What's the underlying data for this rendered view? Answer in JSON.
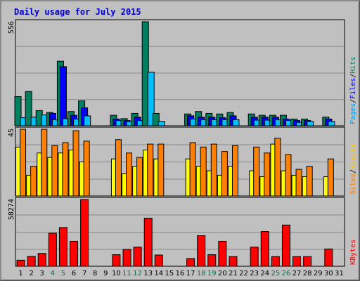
{
  "chart_data": {
    "type": "bar",
    "title": "Daily usage for July 2015",
    "x": [
      "1",
      "2",
      "3",
      "4",
      "5",
      "6",
      "7",
      "8",
      "9",
      "10",
      "11",
      "12",
      "13",
      "14",
      "15",
      "16",
      "17",
      "18",
      "19",
      "20",
      "21",
      "22",
      "23",
      "24",
      "25",
      "26",
      "27",
      "28",
      "29",
      "30",
      "31"
    ],
    "weekend_days": [
      "4",
      "5",
      "11",
      "12",
      "18",
      "19",
      "25",
      "26"
    ],
    "panels": [
      {
        "name": "hits-files-pages",
        "ymax_label": "556",
        "ymax": 556,
        "legend": [
          "Pages",
          "/",
          "Files",
          "/",
          "Hits"
        ],
        "series": [
          {
            "name": "Hits",
            "color": "#008060",
            "values": [
              156,
              183,
              81,
              71,
              345,
              76,
              133,
              0,
              0,
              56,
              38,
              66,
              556,
              66,
              0,
              0,
              63,
              76,
              66,
              63,
              71,
              0,
              63,
              56,
              56,
              56,
              36,
              36,
              0,
              46,
              0
            ]
          },
          {
            "name": "Files",
            "color": "#0000ff",
            "values": [
              0,
              0,
              0,
              66,
              316,
              56,
              96,
              0,
              0,
              36,
              28,
              46,
              0,
              0,
              0,
              0,
              53,
              46,
              46,
              43,
              53,
              0,
              46,
              46,
              46,
              36,
              28,
              28,
              0,
              36,
              0
            ]
          },
          {
            "name": "Pages",
            "color": "#00c0ff",
            "values": [
              43,
              46,
              58,
              33,
              38,
              36,
              53,
              0,
              0,
              28,
              23,
              28,
              286,
              23,
              0,
              0,
              36,
              33,
              33,
              33,
              33,
              0,
              30,
              30,
              33,
              28,
              18,
              23,
              0,
              23,
              0
            ]
          }
        ]
      },
      {
        "name": "visits-sites",
        "ymax_label": "45",
        "ymax": 45,
        "legend": [
          "Sites",
          "/",
          "Visits"
        ],
        "series": [
          {
            "name": "Visits",
            "color": "#ffff00",
            "values": [
              33,
              14,
              29,
              26,
              29,
              31,
              23,
              0,
              0,
              25,
              15,
              20,
              31,
              25,
              0,
              0,
              25,
              20,
              17,
              14,
              20,
              0,
              17,
              13,
              35,
              17,
              14,
              13,
              0,
              13,
              0
            ]
          },
          {
            "name": "Sites",
            "color": "#ff8000",
            "values": [
              45,
              20,
              45,
              34,
              36,
              44,
              37,
              0,
              0,
              38,
              29,
              26,
              35,
              35,
              0,
              0,
              36,
              33,
              35,
              30,
              34,
              0,
              33,
              29,
              39,
              28,
              18,
              20,
              0,
              25,
              0
            ]
          }
        ]
      },
      {
        "name": "kbytes",
        "ymax_label": "58274",
        "ymax": 58274,
        "legend": [
          "KBytes"
        ],
        "series": [
          {
            "name": "KBytes",
            "color": "#ff0000",
            "values": [
              5300,
              8600,
              11200,
              28800,
              33800,
              21800,
              58274,
              0,
              0,
              10100,
              14700,
              16700,
              42000,
              9800,
              0,
              0,
              6700,
              26700,
              10100,
              21800,
              8400,
              0,
              16700,
              30300,
              8400,
              36000,
              8400,
              8400,
              0,
              15100,
              0
            ]
          }
        ]
      }
    ],
    "colors": {
      "background": "#c0c0c0",
      "title": "#0000cc",
      "weekend_label": "#007040",
      "weekday_label": "#000000",
      "gridline": "#888888"
    }
  }
}
